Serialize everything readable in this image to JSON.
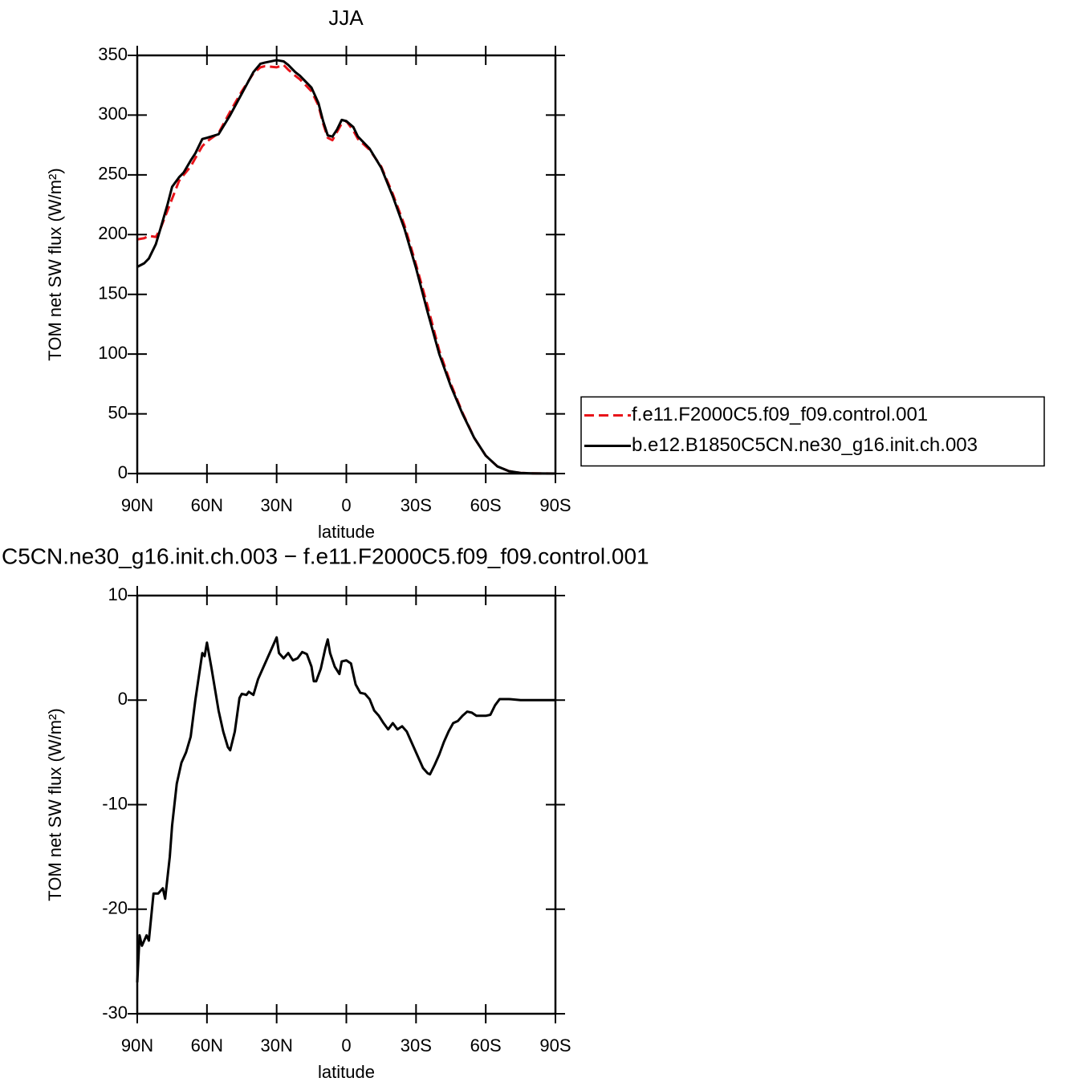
{
  "chart_data": [
    {
      "type": "line",
      "title": "JJA",
      "x_label": "latitude",
      "y_label": "TOM net SW flux (W/m²)",
      "x": [
        90,
        87,
        85,
        82,
        80,
        77,
        75,
        72,
        70,
        67,
        65,
        62,
        60,
        55,
        50,
        45,
        40,
        37,
        35,
        30,
        27,
        25,
        22,
        20,
        15,
        12,
        10,
        8,
        6,
        4,
        2,
        0,
        -3,
        -5,
        -10,
        -15,
        -20,
        -25,
        -30,
        -35,
        -40,
        -45,
        -50,
        -55,
        -60,
        -65,
        -70,
        -75,
        -80,
        -90
      ],
      "series": [
        {
          "name": "f.e11.F2000C5.f09_f09.control.001",
          "color": "#e8141a",
          "linestyle": "dashed",
          "values": [
            196,
            197,
            199,
            198,
            205,
            220,
            230,
            245,
            250,
            257,
            264,
            274,
            278,
            285,
            303,
            320,
            335,
            340,
            341,
            340,
            342,
            338,
            333,
            330,
            320,
            308,
            293,
            281,
            279,
            286,
            293,
            295,
            287,
            280,
            271,
            257,
            234,
            208,
            175,
            140,
            103,
            75,
            51,
            30,
            15,
            6,
            2,
            0.5,
            0.2,
            0
          ]
        },
        {
          "name": "b.e12.B1850C5CN.ne30_g16.init.ch.003",
          "color": "#000000",
          "linestyle": "solid",
          "values": [
            173,
            176,
            180,
            192,
            205,
            225,
            240,
            248,
            252,
            262,
            268,
            280,
            281,
            284,
            300,
            318,
            336,
            343,
            344,
            346,
            345,
            342,
            336,
            333,
            323,
            310,
            295,
            283,
            282,
            288,
            296,
            295,
            290,
            282,
            272,
            256,
            232,
            205,
            172,
            135,
            100,
            73,
            50,
            30,
            15,
            6,
            2,
            0.5,
            0.2,
            0
          ]
        }
      ],
      "xlim": [
        90,
        -90
      ],
      "xticks": [
        {
          "value": 90,
          "label": "90N"
        },
        {
          "value": 60,
          "label": "60N"
        },
        {
          "value": 30,
          "label": "30N"
        },
        0,
        {
          "value": -30,
          "label": "30S"
        },
        {
          "value": -60,
          "label": "60S"
        },
        {
          "value": -90,
          "label": "90S"
        }
      ],
      "ylim": [
        0,
        350
      ],
      "yticks": [
        0,
        50,
        100,
        150,
        200,
        250,
        300,
        350
      ],
      "legend": "right"
    },
    {
      "type": "line",
      "title": "C5CN.ne30_g16.init.ch.003 − f.e11.F2000C5.f09_f09.control.001",
      "x_label": "latitude",
      "y_label": "TOM net SW flux (W/m²)",
      "x": [
        90,
        89,
        88,
        86,
        85,
        83,
        81,
        79,
        78,
        76,
        75,
        73,
        71,
        69,
        67,
        65,
        63,
        62,
        61,
        60,
        58,
        55,
        53,
        51,
        50,
        48,
        46,
        45,
        43,
        42,
        40,
        38,
        36,
        34,
        32,
        30,
        29,
        27,
        25,
        23,
        21,
        19,
        17,
        15,
        14,
        13,
        11,
        9,
        8,
        7,
        5,
        3,
        2,
        0,
        -2,
        -4,
        -6,
        -8,
        -10,
        -12,
        -14,
        -16,
        -18,
        -20,
        -22,
        -24,
        -26,
        -28,
        -30,
        -33,
        -35,
        -36,
        -38,
        -40,
        -42,
        -44,
        -46,
        -48,
        -50,
        -52,
        -54,
        -56,
        -58,
        -60,
        -62,
        -64,
        -66,
        -70,
        -75,
        -90
      ],
      "series": [
        {
          "color": "#000000",
          "linestyle": "solid",
          "values": [
            -27,
            -22.5,
            -23.5,
            -22.5,
            -23,
            -18.5,
            -18.5,
            -18,
            -19,
            -15,
            -12,
            -8,
            -6,
            -5,
            -3.5,
            0,
            3,
            4.5,
            4.2,
            5.5,
            3,
            -1,
            -3,
            -4.5,
            -4.8,
            -3,
            0.2,
            0.6,
            0.5,
            0.8,
            0.5,
            2,
            3,
            4,
            5,
            6,
            4.5,
            4,
            4.5,
            3.8,
            4,
            4.6,
            4.4,
            3.2,
            1.8,
            1.8,
            3,
            5,
            5.8,
            4.5,
            3.2,
            2.5,
            3.7,
            3.8,
            3.5,
            1.5,
            0.7,
            0.6,
            0.1,
            -1,
            -1.5,
            -2.2,
            -2.8,
            -2.2,
            -2.8,
            -2.5,
            -3,
            -4,
            -5,
            -6.5,
            -7,
            -7.1,
            -6.2,
            -5.2,
            -4,
            -3,
            -2.2,
            -2,
            -1.5,
            -1.1,
            -1.2,
            -1.5,
            -1.5,
            -1.5,
            -1.4,
            -0.5,
            0.1,
            0.1,
            0,
            0
          ]
        }
      ],
      "xlim": [
        90,
        -90
      ],
      "xticks": [
        {
          "value": 90,
          "label": "90N"
        },
        {
          "value": 60,
          "label": "60N"
        },
        {
          "value": 30,
          "label": "30N"
        },
        0,
        {
          "value": -30,
          "label": "30S"
        },
        {
          "value": -60,
          "label": "60S"
        },
        {
          "value": -90,
          "label": "90S"
        }
      ],
      "ylim": [
        -30,
        10
      ],
      "yticks": [
        -30,
        -20,
        -10,
        0,
        10
      ]
    }
  ]
}
